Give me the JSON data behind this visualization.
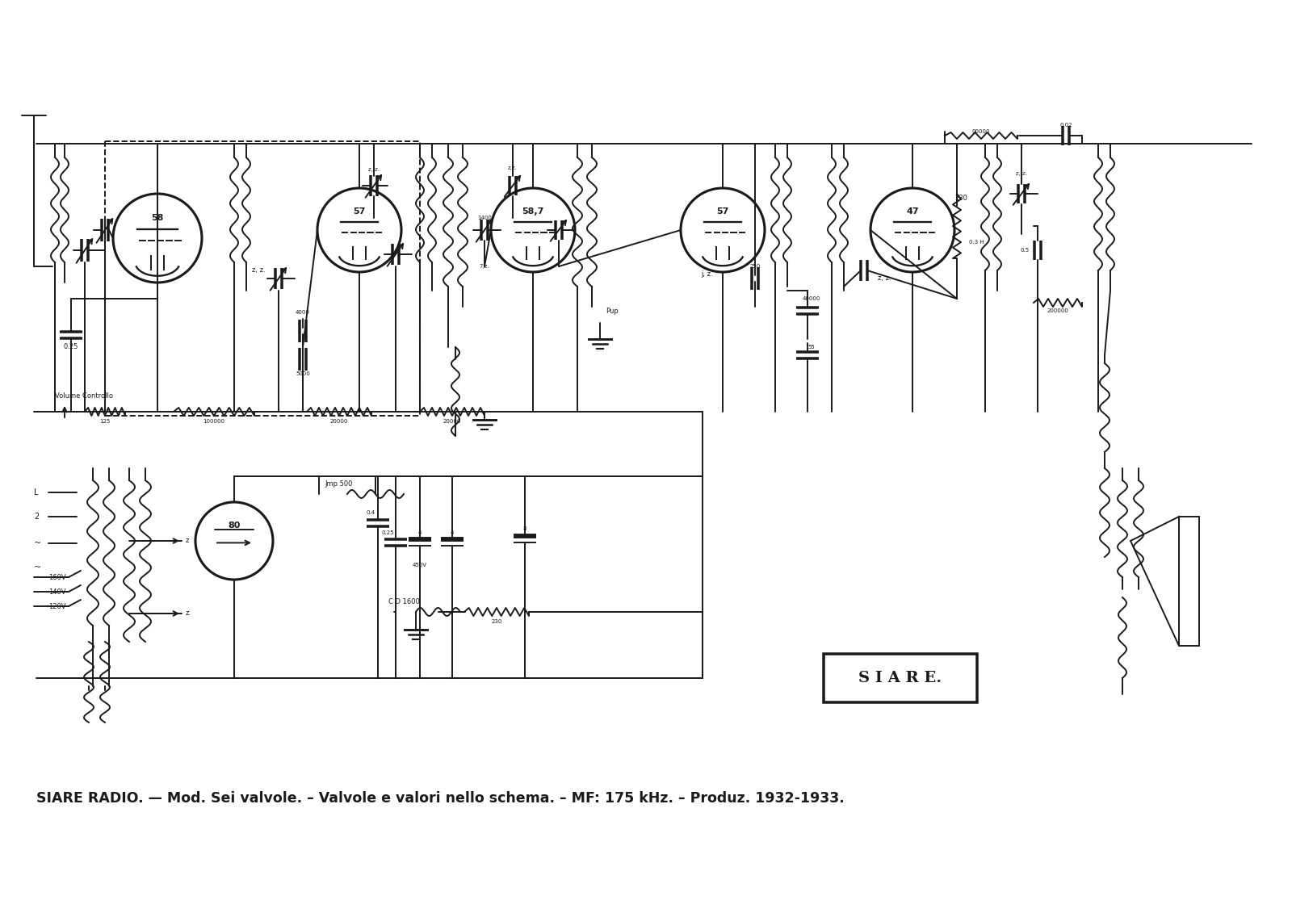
{
  "background_color": "#ffffff",
  "line_color": "#1a1a1a",
  "line_width": 1.4,
  "caption_text": "SIARE RADIO. — Mod. Sei valvole. – Valvole e valori nello schema. – MF: 175 kHz. – Produz. 1932-1933.",
  "caption_fontsize": 12.5,
  "siare_text": "S I A R E.",
  "tube_labels": [
    "58",
    "57",
    "58,7",
    "57",
    "47"
  ],
  "rectifier_label": "80"
}
